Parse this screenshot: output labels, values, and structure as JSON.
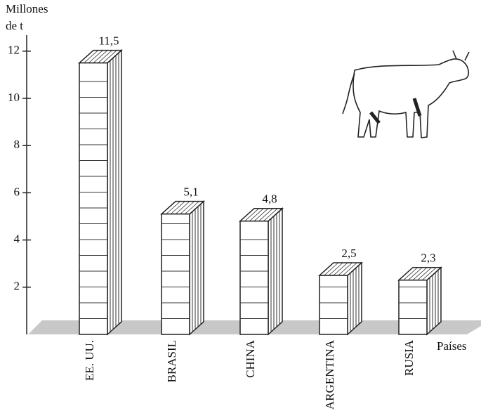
{
  "chart_data": {
    "type": "bar3d",
    "y_label_lines": [
      "Millones",
      "de t"
    ],
    "x_label": "Países",
    "categories": [
      "EE. UU.",
      "BRASIL",
      "CHINA",
      "ARGENTINA",
      "RUSIA"
    ],
    "values": [
      11.5,
      5.1,
      4.8,
      2.5,
      2.3
    ],
    "value_labels": [
      "11,5",
      "5,1",
      "4,8",
      "2,5",
      "2,3"
    ],
    "ylim": [
      0,
      12.5
    ],
    "yticks": [
      2,
      4,
      6,
      8,
      10,
      12
    ]
  }
}
